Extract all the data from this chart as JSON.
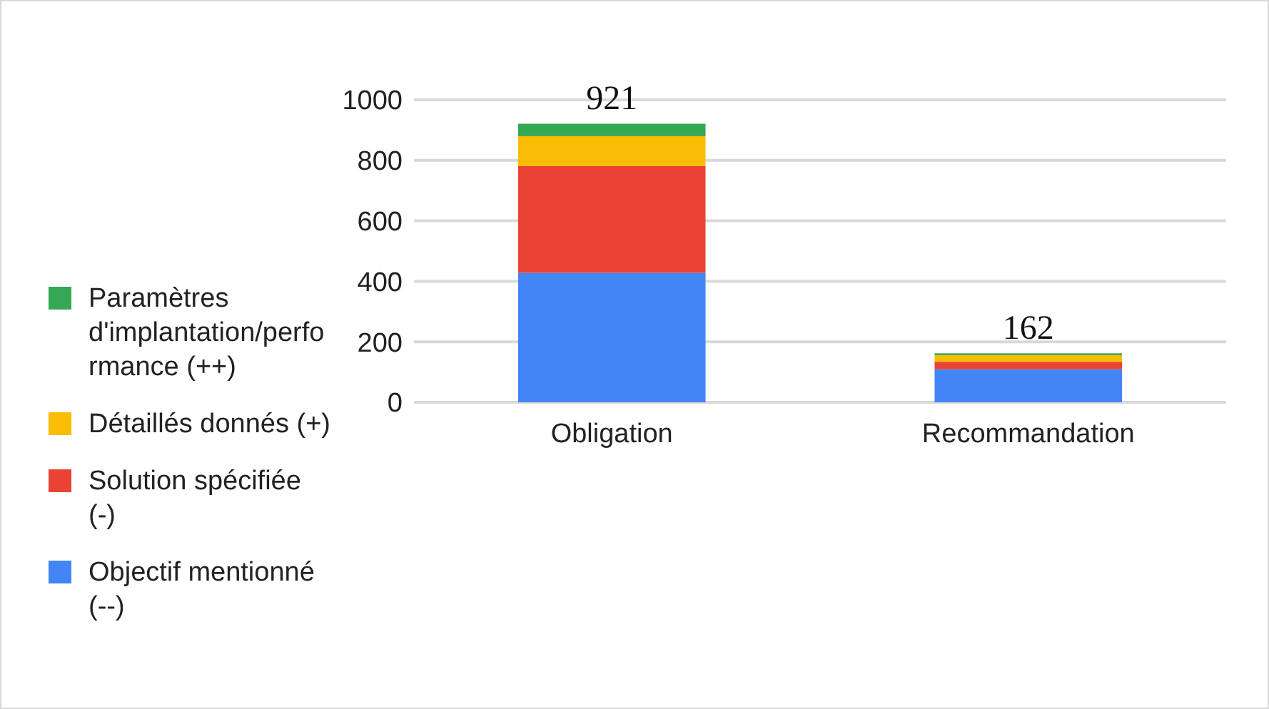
{
  "chart_data": {
    "type": "bar",
    "stacked": true,
    "categories": [
      "Obligation",
      "Recommandation"
    ],
    "series": [
      {
        "name": "Objectif mentionné (--)",
        "color": "#4285f4",
        "values": [
          428,
          109
        ]
      },
      {
        "name": "Solution spécifiée (-)",
        "color": "#ea4335",
        "values": [
          353,
          25
        ]
      },
      {
        "name": "Détaillés donnés (+)",
        "color": "#fbbc04",
        "values": [
          99,
          22
        ]
      },
      {
        "name": "Paramètres d'implantation/performance (++)",
        "color": "#34a853",
        "values": [
          41,
          6
        ]
      }
    ],
    "totals": [
      "921",
      "162"
    ],
    "ylim": [
      0,
      1000
    ],
    "yticks": [
      0,
      200,
      400,
      600,
      800,
      1000
    ],
    "grid": "y",
    "legend": "left"
  }
}
